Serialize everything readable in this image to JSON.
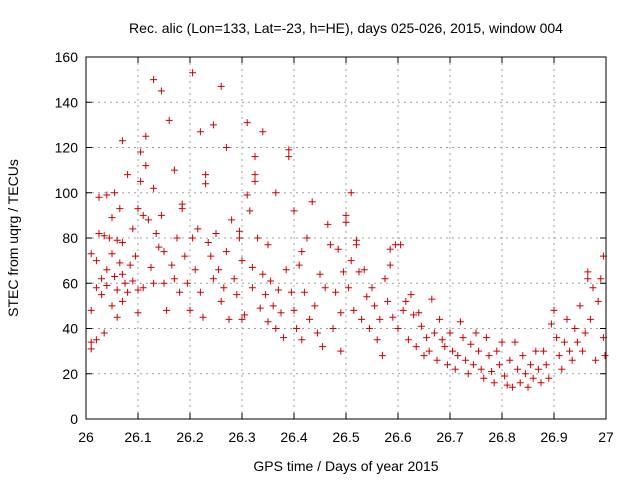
{
  "chart_data": {
    "type": "scatter",
    "title": "Rec. alic (Lon=133, Lat=-23, h=HE), days 025-026, 2015, window 004",
    "xlabel": "GPS time / Days of year 2015",
    "ylabel": "STEC from uqrg / TECUs",
    "xlim": [
      26,
      27
    ],
    "ylim": [
      0,
      160
    ],
    "xticks": [
      26,
      26.1,
      26.2,
      26.3,
      26.4,
      26.5,
      26.6,
      26.7,
      26.8,
      26.9,
      27
    ],
    "xtick_labels": [
      "26",
      "26.1",
      "26.2",
      "26.3",
      "26.4",
      "26.5",
      "26.6",
      "26.7",
      "26.8",
      "26.9",
      "27"
    ],
    "yticks": [
      0,
      20,
      40,
      60,
      80,
      100,
      120,
      140,
      160
    ],
    "ytick_labels": [
      "0",
      "20",
      "40",
      "60",
      "80",
      "100",
      "120",
      "140",
      "160"
    ],
    "grid": true,
    "marker": "+",
    "color": "#cc0000",
    "series": [
      {
        "name": "STEC",
        "points": [
          [
            26.01,
            73
          ],
          [
            26.01,
            48
          ],
          [
            26.01,
            34
          ],
          [
            26.01,
            31
          ],
          [
            26.02,
            70
          ],
          [
            26.02,
            58
          ],
          [
            26.02,
            35
          ],
          [
            26.025,
            82
          ],
          [
            26.025,
            98
          ],
          [
            26.03,
            62
          ],
          [
            26.03,
            55
          ],
          [
            26.035,
            81
          ],
          [
            26.035,
            38
          ],
          [
            26.04,
            99
          ],
          [
            26.04,
            66
          ],
          [
            26.04,
            59
          ],
          [
            26.045,
            80
          ],
          [
            26.05,
            89
          ],
          [
            26.05,
            73
          ],
          [
            26.05,
            50
          ],
          [
            26.055,
            100
          ],
          [
            26.055,
            63
          ],
          [
            26.06,
            79
          ],
          [
            26.06,
            57
          ],
          [
            26.06,
            45
          ],
          [
            26.065,
            93
          ],
          [
            26.065,
            69
          ],
          [
            26.07,
            123
          ],
          [
            26.07,
            78
          ],
          [
            26.07,
            64
          ],
          [
            26.07,
            52
          ],
          [
            26.075,
            60
          ],
          [
            26.08,
            108
          ],
          [
            26.08,
            56
          ],
          [
            26.085,
            68
          ],
          [
            26.09,
            84
          ],
          [
            26.09,
            61
          ],
          [
            26.095,
            72
          ],
          [
            26.1,
            93
          ],
          [
            26.1,
            57
          ],
          [
            26.1,
            47
          ],
          [
            26.105,
            118
          ],
          [
            26.105,
            105
          ],
          [
            26.11,
            90
          ],
          [
            26.11,
            58
          ],
          [
            26.115,
            125
          ],
          [
            26.115,
            112
          ],
          [
            26.12,
            88
          ],
          [
            26.125,
            67
          ],
          [
            26.13,
            150
          ],
          [
            26.13,
            102
          ],
          [
            26.13,
            60
          ],
          [
            26.135,
            82
          ],
          [
            26.14,
            76
          ],
          [
            26.145,
            145
          ],
          [
            26.145,
            90
          ],
          [
            26.15,
            74
          ],
          [
            26.15,
            60
          ],
          [
            26.155,
            48
          ],
          [
            26.16,
            132
          ],
          [
            26.165,
            68
          ],
          [
            26.17,
            110
          ],
          [
            26.17,
            62
          ],
          [
            26.175,
            80
          ],
          [
            26.18,
            56
          ],
          [
            26.185,
            95
          ],
          [
            26.185,
            93
          ],
          [
            26.19,
            72
          ],
          [
            26.195,
            60
          ],
          [
            26.2,
            48
          ],
          [
            26.205,
            153
          ],
          [
            26.205,
            80
          ],
          [
            26.21,
            66
          ],
          [
            26.215,
            84
          ],
          [
            26.22,
            127
          ],
          [
            26.22,
            56
          ],
          [
            26.225,
            45
          ],
          [
            26.23,
            108
          ],
          [
            26.23,
            104
          ],
          [
            26.235,
            78
          ],
          [
            26.24,
            72
          ],
          [
            26.245,
            130
          ],
          [
            26.245,
            62
          ],
          [
            26.25,
            82
          ],
          [
            26.255,
            66
          ],
          [
            26.26,
            147
          ],
          [
            26.26,
            52
          ],
          [
            26.265,
            58
          ],
          [
            26.27,
            120
          ],
          [
            26.27,
            74
          ],
          [
            26.275,
            44
          ],
          [
            26.28,
            88
          ],
          [
            26.285,
            62
          ],
          [
            26.29,
            55
          ],
          [
            26.295,
            83
          ],
          [
            26.295,
            80
          ],
          [
            26.3,
            70
          ],
          [
            26.3,
            44
          ],
          [
            26.305,
            46
          ],
          [
            26.31,
            131
          ],
          [
            26.31,
            99
          ],
          [
            26.315,
            92
          ],
          [
            26.32,
            67
          ],
          [
            26.32,
            58
          ],
          [
            26.325,
            116
          ],
          [
            26.325,
            108
          ],
          [
            26.325,
            105
          ],
          [
            26.33,
            80
          ],
          [
            26.335,
            49
          ],
          [
            26.34,
            127
          ],
          [
            26.34,
            64
          ],
          [
            26.345,
            55
          ],
          [
            26.35,
            77
          ],
          [
            26.35,
            43
          ],
          [
            26.355,
            61
          ],
          [
            26.36,
            50
          ],
          [
            26.365,
            100
          ],
          [
            26.365,
            40
          ],
          [
            26.37,
            57
          ],
          [
            26.375,
            47
          ],
          [
            26.38,
            36
          ],
          [
            26.385,
            66
          ],
          [
            26.39,
            119
          ],
          [
            26.39,
            116
          ],
          [
            26.395,
            56
          ],
          [
            26.4,
            92
          ],
          [
            26.4,
            48
          ],
          [
            26.405,
            40
          ],
          [
            26.41,
            68
          ],
          [
            26.415,
            74
          ],
          [
            26.415,
            35
          ],
          [
            26.42,
            56
          ],
          [
            26.425,
            80
          ],
          [
            26.43,
            44
          ],
          [
            26.435,
            96
          ],
          [
            26.44,
            50
          ],
          [
            26.445,
            38
          ],
          [
            26.45,
            64
          ],
          [
            26.455,
            32
          ],
          [
            26.46,
            58
          ],
          [
            26.465,
            86
          ],
          [
            26.47,
            77
          ],
          [
            26.475,
            40
          ],
          [
            26.48,
            56
          ],
          [
            26.485,
            75
          ],
          [
            26.49,
            47
          ],
          [
            26.49,
            30
          ],
          [
            26.495,
            65
          ],
          [
            26.5,
            87
          ],
          [
            26.5,
            90
          ],
          [
            26.505,
            58
          ],
          [
            26.51,
            100
          ],
          [
            26.51,
            70
          ],
          [
            26.515,
            48
          ],
          [
            26.52,
            79
          ],
          [
            26.52,
            77
          ],
          [
            26.525,
            65
          ],
          [
            26.53,
            44
          ],
          [
            26.535,
            66
          ],
          [
            26.54,
            54
          ],
          [
            26.545,
            40
          ],
          [
            26.55,
            58
          ],
          [
            26.555,
            50
          ],
          [
            26.56,
            35
          ],
          [
            26.565,
            44
          ],
          [
            26.57,
            28
          ],
          [
            26.575,
            62
          ],
          [
            26.58,
            52
          ],
          [
            26.585,
            75
          ],
          [
            26.585,
            68
          ],
          [
            26.59,
            45
          ],
          [
            26.595,
            77
          ],
          [
            26.6,
            40
          ],
          [
            26.605,
            77
          ],
          [
            26.61,
            48
          ],
          [
            26.615,
            52
          ],
          [
            26.62,
            35
          ],
          [
            26.625,
            55
          ],
          [
            26.63,
            46
          ],
          [
            26.635,
            32
          ],
          [
            26.64,
            47
          ],
          [
            26.645,
            41
          ],
          [
            26.65,
            28
          ],
          [
            26.655,
            36
          ],
          [
            26.66,
            30
          ],
          [
            26.665,
            53
          ],
          [
            26.67,
            38
          ],
          [
            26.675,
            26
          ],
          [
            26.68,
            44
          ],
          [
            26.685,
            35
          ],
          [
            26.69,
            32
          ],
          [
            26.695,
            24
          ],
          [
            26.7,
            38
          ],
          [
            26.705,
            30
          ],
          [
            26.71,
            22
          ],
          [
            26.715,
            28
          ],
          [
            26.72,
            43
          ],
          [
            26.725,
            36
          ],
          [
            26.73,
            26
          ],
          [
            26.735,
            20
          ],
          [
            26.74,
            33
          ],
          [
            26.745,
            24
          ],
          [
            26.75,
            38
          ],
          [
            26.755,
            30
          ],
          [
            26.76,
            22
          ],
          [
            26.765,
            18
          ],
          [
            26.77,
            36
          ],
          [
            26.775,
            28
          ],
          [
            26.78,
            21
          ],
          [
            26.785,
            16
          ],
          [
            26.79,
            30
          ],
          [
            26.795,
            24
          ],
          [
            26.8,
            34
          ],
          [
            26.805,
            19
          ],
          [
            26.81,
            15
          ],
          [
            26.815,
            26
          ],
          [
            26.82,
            14
          ],
          [
            26.825,
            34
          ],
          [
            26.83,
            22
          ],
          [
            26.835,
            16
          ],
          [
            26.84,
            28
          ],
          [
            26.845,
            20
          ],
          [
            26.85,
            14
          ],
          [
            26.855,
            24
          ],
          [
            26.86,
            18
          ],
          [
            26.865,
            30
          ],
          [
            26.87,
            22
          ],
          [
            26.875,
            16
          ],
          [
            26.88,
            30
          ],
          [
            26.885,
            24
          ],
          [
            26.89,
            18
          ],
          [
            26.895,
            42
          ],
          [
            26.9,
            48
          ],
          [
            26.905,
            36
          ],
          [
            26.91,
            28
          ],
          [
            26.915,
            22
          ],
          [
            26.92,
            34
          ],
          [
            26.925,
            44
          ],
          [
            26.93,
            30
          ],
          [
            26.935,
            26
          ],
          [
            26.94,
            40
          ],
          [
            26.945,
            34
          ],
          [
            26.95,
            50
          ],
          [
            26.955,
            30
          ],
          [
            26.96,
            38
          ],
          [
            26.965,
            65
          ],
          [
            26.965,
            62
          ],
          [
            26.97,
            44
          ],
          [
            26.975,
            58
          ],
          [
            26.98,
            26
          ],
          [
            26.985,
            52
          ],
          [
            26.99,
            62
          ],
          [
            26.995,
            72
          ],
          [
            26.995,
            36
          ],
          [
            26.998,
            28
          ]
        ]
      }
    ]
  }
}
